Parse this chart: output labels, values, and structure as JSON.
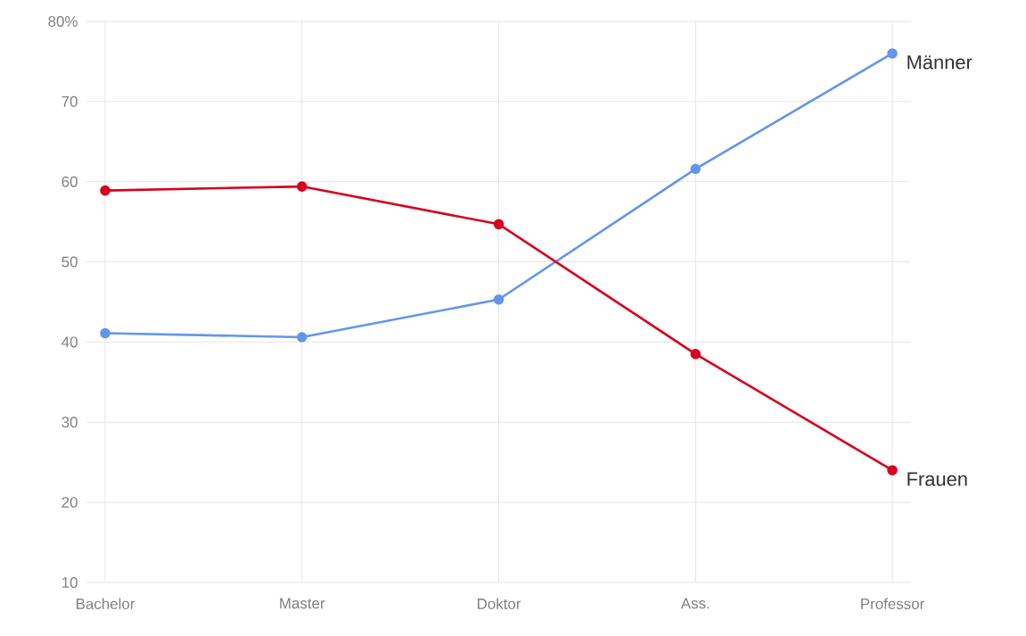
{
  "chart_data": {
    "type": "line",
    "categories": [
      "Bachelor",
      "Master",
      "Doktor",
      "Ass.",
      "Professor"
    ],
    "series": [
      {
        "name": "Männer",
        "color": "#6495ed",
        "values": [
          41.1,
          40.6,
          45.3,
          61.6,
          76.0
        ]
      },
      {
        "name": "Frauen",
        "color": "#d7001e",
        "values": [
          58.9,
          59.4,
          54.7,
          38.5,
          24.0
        ]
      }
    ],
    "ylim": [
      10,
      80
    ],
    "yticks": [
      10,
      20,
      30,
      40,
      50,
      60,
      70,
      {
        "value": 80,
        "label": "80%"
      }
    ],
    "grid": true,
    "legend": false,
    "marker": "circle",
    "line_style": "solid"
  }
}
